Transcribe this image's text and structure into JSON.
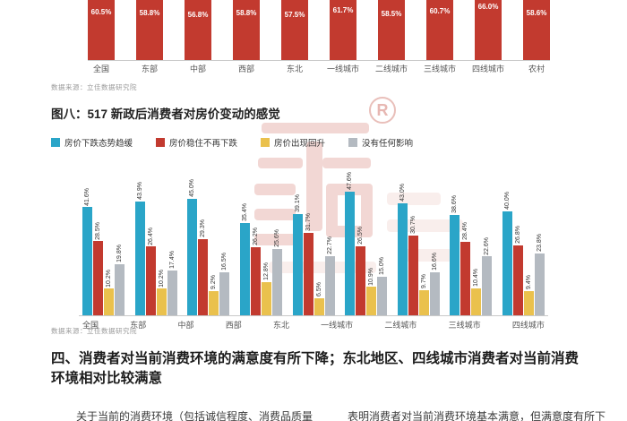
{
  "sources": {
    "top": "数据来源：立佳数据研究院",
    "figure8": "数据来源：立佳数据研究院"
  },
  "figure8": {
    "title": "图八：517 新政后消费者对房价变动的感觉"
  },
  "watermark": {
    "reg_mark": "R"
  },
  "section4": {
    "heading": "四、消费者对当前消费环境的满意度有所下降；东北地区、四线城市消费者对当前消费环境相对比较满意",
    "left_text_partial": "关于当前的消费环境（包括诚信程度、消费品质量",
    "right_text_partial": "表明消费者对当前消费环境基本满意，但满意度有所下"
  },
  "chart_data": [
    {
      "type": "bar",
      "title": "",
      "note": "top chart cropped at page top, value labels inside bars",
      "categories": [
        "全国",
        "东部",
        "中部",
        "西部",
        "东北",
        "一线城市",
        "二线城市",
        "三线城市",
        "四线城市",
        "农村"
      ],
      "values": [
        60.5,
        58.8,
        56.8,
        58.8,
        57.5,
        61.7,
        58.5,
        60.7,
        66.0,
        58.6
      ],
      "bar_color": "#c23a2f",
      "value_label_color": "#ffffff",
      "ylim": [
        0,
        70
      ],
      "grid": false
    },
    {
      "type": "bar",
      "title": "图八：517 新政后消费者对房价变动的感觉",
      "categories": [
        "全国",
        "东部",
        "中部",
        "西部",
        "东北",
        "一线城市",
        "二线城市",
        "三线城市",
        "四线城市"
      ],
      "series": [
        {
          "name": "房价下跌态势趋缓",
          "color": "#2aa5c8",
          "values": [
            41.6,
            43.9,
            45.0,
            35.4,
            39.1,
            47.6,
            43.0,
            38.6,
            40.0
          ]
        },
        {
          "name": "房价稳住不再下跌",
          "color": "#c23a2f",
          "values": [
            28.5,
            26.4,
            29.3,
            26.2,
            31.7,
            26.5,
            30.7,
            28.4,
            26.8
          ]
        },
        {
          "name": "房价出现回升",
          "color": "#eac14d",
          "values": [
            10.2,
            10.2,
            9.2,
            12.8,
            6.5,
            10.9,
            9.7,
            10.4,
            9.4
          ]
        },
        {
          "name": "没有任何影响",
          "color": "#b4bac1",
          "values": [
            19.8,
            17.4,
            16.5,
            25.6,
            22.7,
            15.0,
            16.6,
            22.6,
            23.8
          ]
        }
      ],
      "xlabel": "",
      "ylabel": "",
      "ylim": [
        0,
        50
      ],
      "grid": false,
      "legend_position": "top-left",
      "value_labels": "rotated-90-above-bars"
    }
  ]
}
